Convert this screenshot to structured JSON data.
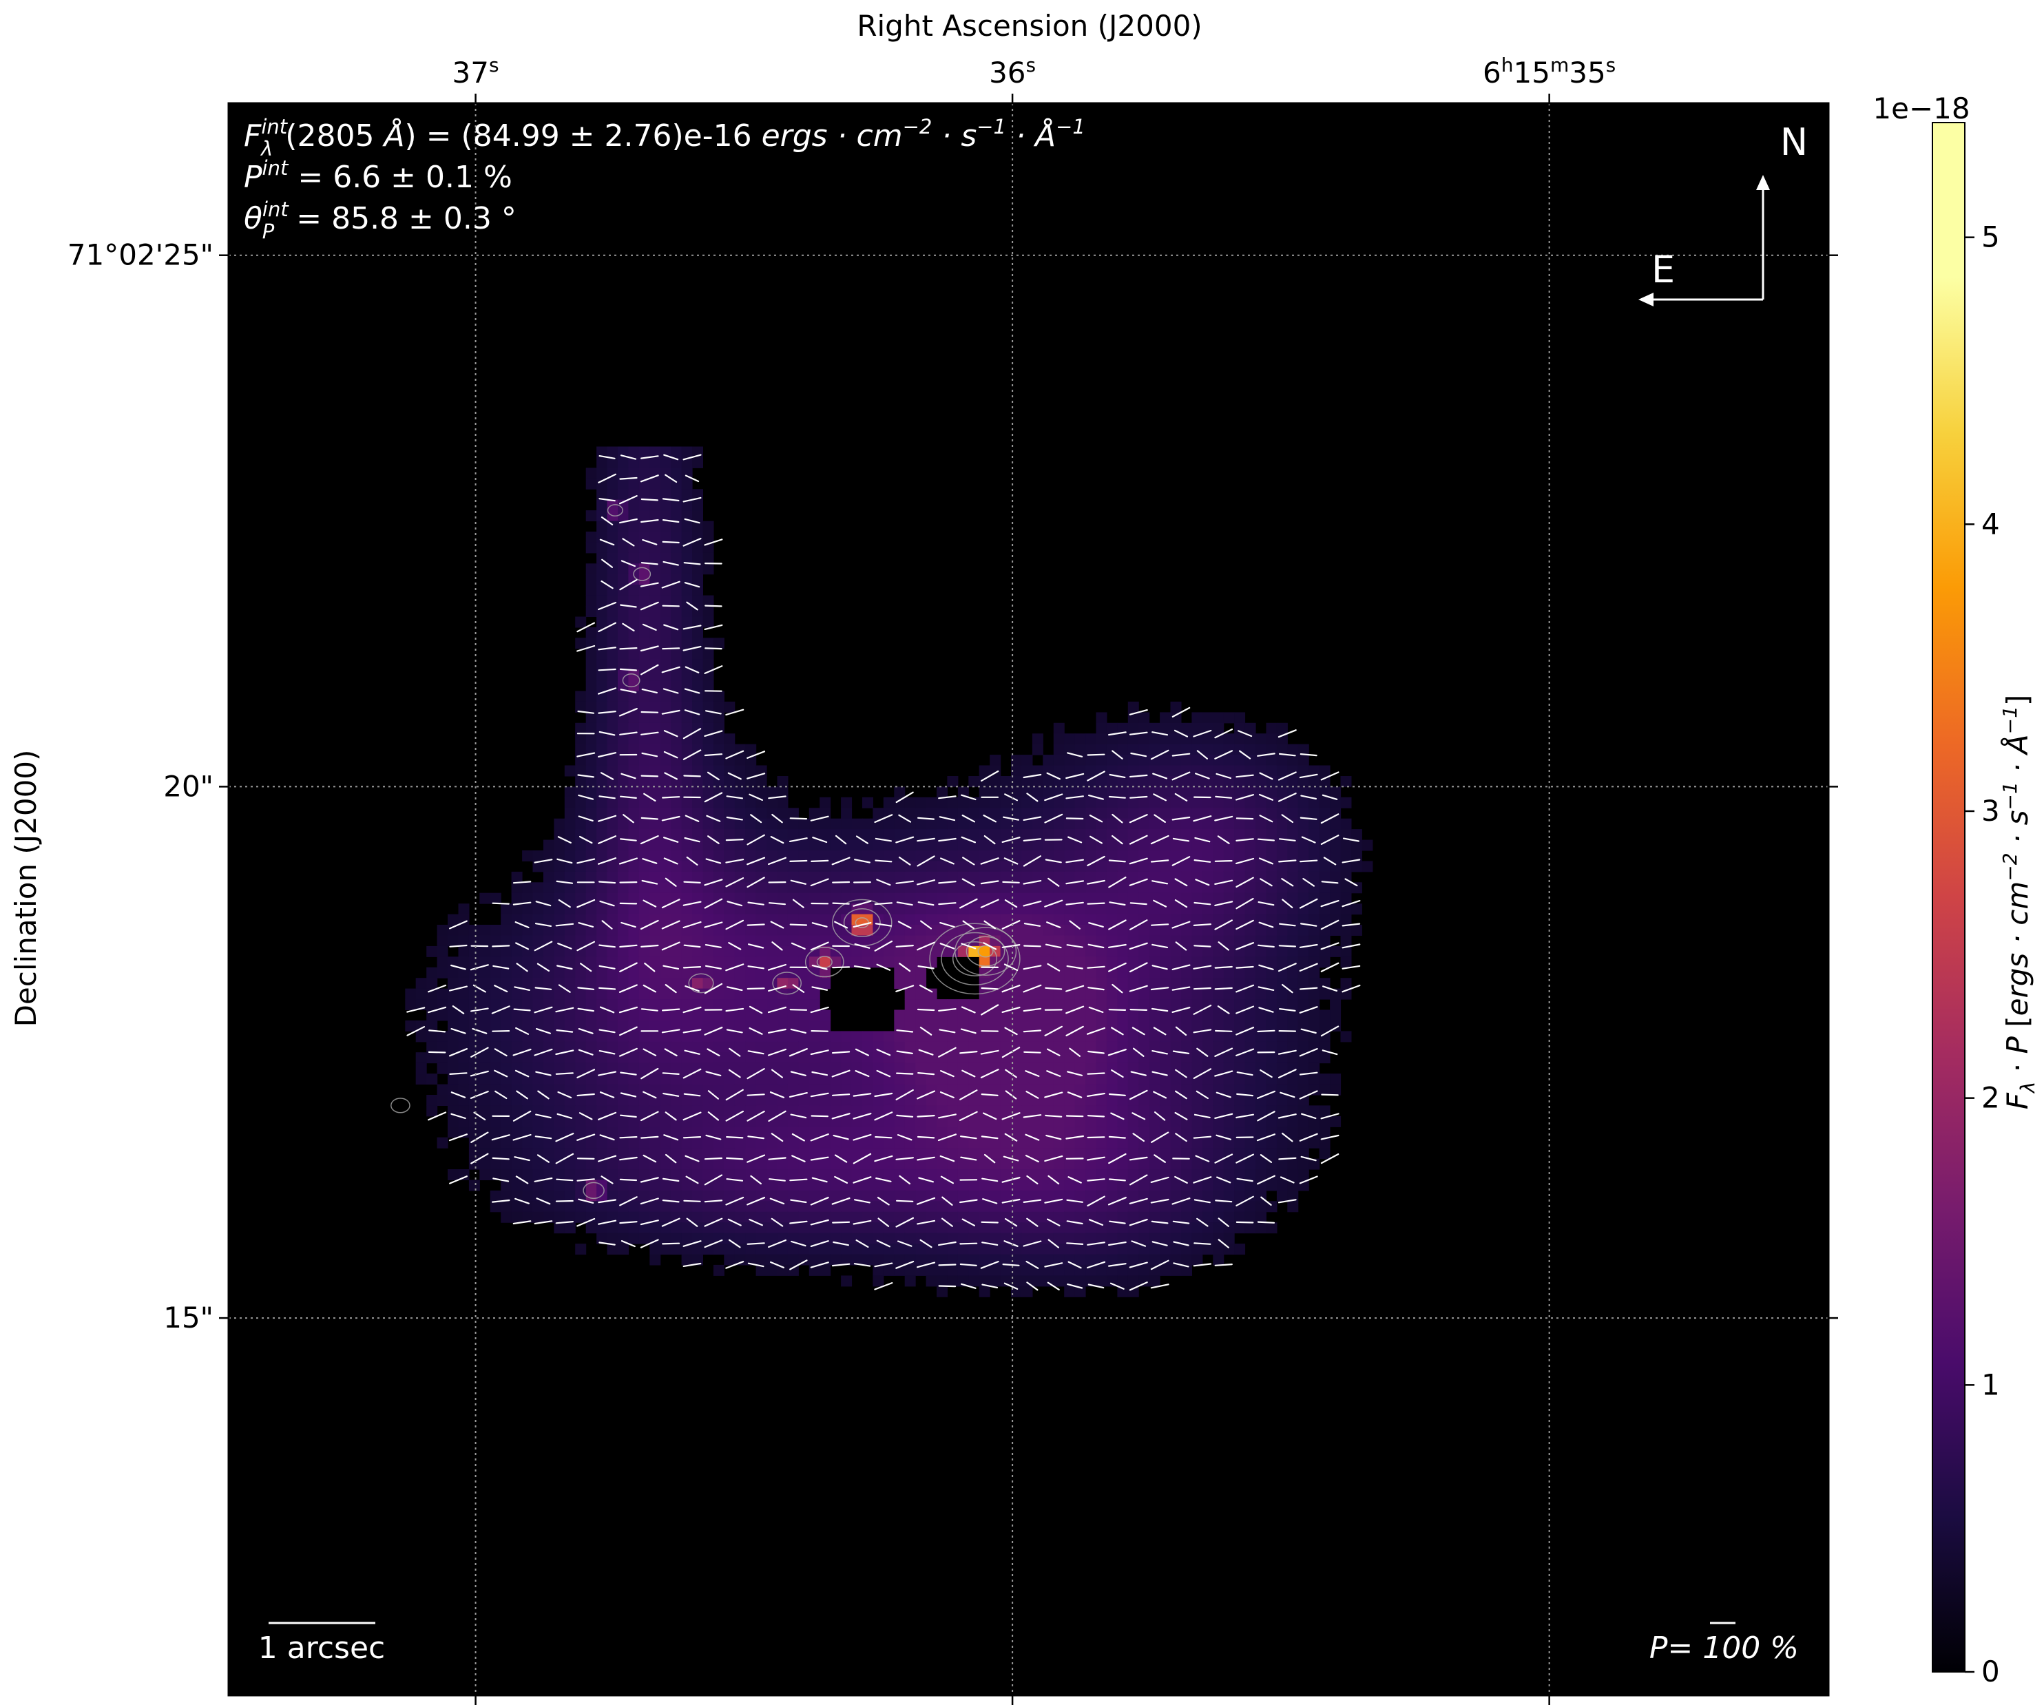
{
  "chart_data": {
    "type": "heatmap",
    "projection": "WCS sky map with polarization vectors",
    "x_axis": {
      "label": "Right Ascension (J2000)",
      "position": "top",
      "ticks": [
        {
          "value_s": 37,
          "html": "37<tspan baseline-shift=\"super\" font-size=\"28\">s</tspan>"
        },
        {
          "value_s": 36,
          "html": "36<tspan baseline-shift=\"super\" font-size=\"28\">s</tspan>"
        },
        {
          "value_s": 35,
          "html": "6<tspan baseline-shift=\"super\" font-size=\"28\">h</tspan>15<tspan baseline-shift=\"super\" font-size=\"28\">m</tspan>35<tspan baseline-shift=\"super\" font-size=\"28\">s</tspan>"
        }
      ],
      "tick_labels": [
        "37s",
        "36s",
        "6h15m35s"
      ],
      "range_s": [
        37.46,
        34.48
      ],
      "direction": "decreasing"
    },
    "y_axis": {
      "label": "Declination (J2000)",
      "ticks": [
        {
          "value_arcsec": 25,
          "label": "71°02'25\""
        },
        {
          "value_arcsec": 20,
          "label": "20\""
        },
        {
          "value_arcsec": 15,
          "label": "15\""
        }
      ],
      "range_arcsec": [
        11.45,
        26.43
      ]
    },
    "grid": true,
    "annotations": {
      "flux_line": "F_λ^int(2805 Å) = (84.99 ± 2.76)e-16 ergs·cm⁻²·s⁻¹·Å⁻¹",
      "pol_line": "P^int = 6.6 ± 0.1 %",
      "angle_line": "θ_P^int = 85.8 ± 0.3 °",
      "north_label": "N",
      "east_label": "E",
      "scale_bar_label": "1 arcsec",
      "pol_scale_label": "P= 100 %"
    },
    "colorbar": {
      "label": "F_λ · P [ergs · cm⁻² · s⁻¹ · Å⁻¹]",
      "offset_text": "1e−18",
      "ticks": [
        0,
        1,
        2,
        3,
        4,
        5
      ],
      "range": [
        0,
        5.4
      ],
      "colormap": "inferno"
    },
    "emission_regions": [
      {
        "ra_s": 36.68,
        "dec_arcsec": 21.6,
        "sra": 0.07,
        "sdec": 1.8,
        "amp": 0.55
      },
      {
        "ra_s": 36.64,
        "dec_arcsec": 19.2,
        "sra": 0.12,
        "sdec": 1.0,
        "amp": 0.45
      },
      {
        "ra_s": 36.72,
        "dec_arcsec": 18.0,
        "sra": 0.25,
        "sdec": 0.8,
        "amp": 0.4
      },
      {
        "ra_s": 36.25,
        "dec_arcsec": 17.0,
        "sra": 0.4,
        "sdec": 0.8,
        "amp": 0.55
      },
      {
        "ra_s": 36.25,
        "dec_arcsec": 18.5,
        "sra": 0.25,
        "sdec": 0.7,
        "amp": 0.7
      },
      {
        "ra_s": 36.02,
        "dec_arcsec": 17.8,
        "sra": 0.12,
        "sdec": 0.6,
        "amp": 0.8
      },
      {
        "ra_s": 35.78,
        "dec_arcsec": 18.5,
        "sra": 0.22,
        "sdec": 1.2,
        "amp": 0.6
      },
      {
        "ra_s": 35.88,
        "dec_arcsec": 16.3,
        "sra": 0.2,
        "sdec": 0.6,
        "amp": 0.5
      },
      {
        "ra_s": 36.42,
        "dec_arcsec": 16.3,
        "sra": 0.3,
        "sdec": 0.45,
        "amp": 0.45
      },
      {
        "ra_s": 35.62,
        "dec_arcsec": 19.5,
        "sra": 0.15,
        "sdec": 0.6,
        "amp": 0.45
      }
    ],
    "peaks": [
      {
        "ra_s": 36.07,
        "dec_arcsec": 18.38,
        "value": 5.3
      },
      {
        "ra_s": 36.05,
        "dec_arcsec": 18.45,
        "value": 3.8
      },
      {
        "ra_s": 36.28,
        "dec_arcsec": 18.72,
        "value": 3.7
      },
      {
        "ra_s": 36.35,
        "dec_arcsec": 18.35,
        "value": 2.6
      },
      {
        "ra_s": 36.42,
        "dec_arcsec": 18.15,
        "value": 2.1
      },
      {
        "ra_s": 36.58,
        "dec_arcsec": 18.15,
        "value": 1.9
      },
      {
        "ra_s": 36.78,
        "dec_arcsec": 16.2,
        "value": 1.7
      },
      {
        "ra_s": 37.14,
        "dec_arcsec": 17.0,
        "value": 1.6
      },
      {
        "ra_s": 36.69,
        "dec_arcsec": 22.0,
        "value": 1.5
      },
      {
        "ra_s": 36.71,
        "dec_arcsec": 21.0,
        "value": 1.5
      },
      {
        "ra_s": 36.74,
        "dec_arcsec": 22.6,
        "value": 1.4
      }
    ],
    "holes": [
      {
        "ra_s": 36.28,
        "dec_arcsec": 18.0,
        "r_arcsec": 0.35
      },
      {
        "ra_s": 36.11,
        "dec_arcsec": 18.2,
        "r_arcsec": 0.25
      }
    ],
    "pixel_arcsec": 0.1,
    "mask_threshold": 0.15,
    "vector_angle_deg": 85.8
  },
  "colors": {
    "background": "#000000",
    "annotation": "#ffffff",
    "grid": "#9a9a9a",
    "contour": "#aaaaaa"
  }
}
